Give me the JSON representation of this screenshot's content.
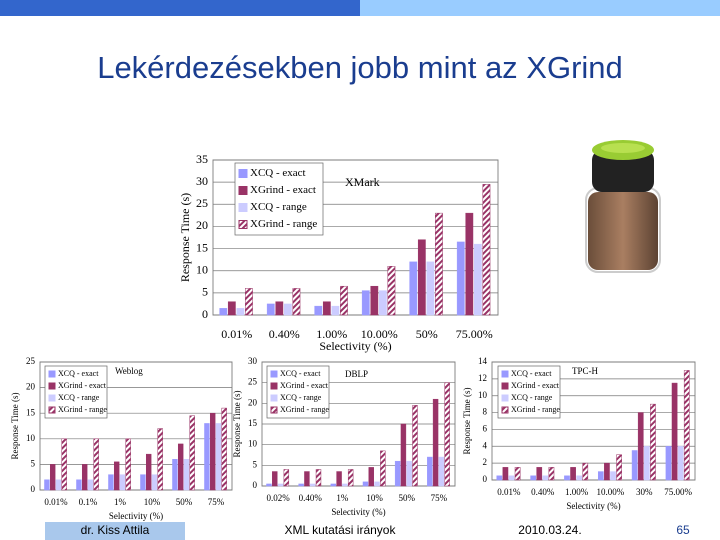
{
  "title": "Lekérdezésekben jobb mint az XGrind",
  "footer": {
    "author": "dr. Kiss Attila",
    "course": "XML kutatási irányok",
    "date": "2010.03.24.",
    "page": "65"
  },
  "chart_data": [
    {
      "type": "bar",
      "annotation": "XMark",
      "xlabel": "Selectivity (%)",
      "ylabel": "Response Time (s)",
      "legend": "upper left",
      "categories": [
        "0.01%",
        "0.40%",
        "1.00%",
        "10.00%",
        "50%",
        "75.00%"
      ],
      "ylim": [
        0,
        35
      ],
      "yticks": [
        0,
        5,
        10,
        15,
        20,
        25,
        30,
        35
      ],
      "series": [
        {
          "name": "XCQ - exact",
          "color": "#9999ff",
          "hatch": false,
          "values": [
            1.5,
            2.5,
            2,
            5.5,
            12,
            16.5
          ]
        },
        {
          "name": "XGrind - exact",
          "color": "#993366",
          "hatch": false,
          "values": [
            3,
            3,
            3,
            6.5,
            17,
            23
          ]
        },
        {
          "name": "XCQ - range",
          "color": "#ccccff",
          "hatch": false,
          "values": [
            1.5,
            2.5,
            2,
            5.5,
            12,
            16
          ]
        },
        {
          "name": "XGrind - range",
          "color": "#993366",
          "hatch": true,
          "values": [
            6,
            6,
            6.5,
            11,
            23,
            29.5
          ]
        }
      ]
    },
    {
      "type": "bar",
      "annotation": "Weblog",
      "xlabel": "Selectivity (%)",
      "ylabel": "Response Time (s)",
      "legend": "upper left",
      "categories": [
        "0.01%",
        "0.1%",
        "1%",
        "10%",
        "50%",
        "75%"
      ],
      "ylim": [
        0,
        25
      ],
      "yticks": [
        0,
        5,
        10,
        15,
        20,
        25
      ],
      "series": [
        {
          "name": "XCQ - exact",
          "color": "#9999ff",
          "hatch": false,
          "values": [
            2,
            2,
            3,
            3,
            6,
            13
          ]
        },
        {
          "name": "XGrind - exact",
          "color": "#993366",
          "hatch": false,
          "values": [
            5,
            5,
            5.5,
            7,
            9,
            15
          ]
        },
        {
          "name": "XCQ - range",
          "color": "#ccccff",
          "hatch": false,
          "values": [
            2,
            2,
            3,
            3,
            6,
            13
          ]
        },
        {
          "name": "XGrind - range",
          "color": "#993366",
          "hatch": true,
          "values": [
            10,
            10,
            10,
            12,
            14.5,
            16
          ]
        }
      ]
    },
    {
      "type": "bar",
      "annotation": "DBLP",
      "xlabel": "Selectivity (%)",
      "ylabel": "Response Time (s)",
      "legend": "upper left",
      "categories": [
        "0.02%",
        "0.40%",
        "1%",
        "10%",
        "50%",
        "75%"
      ],
      "ylim": [
        0,
        30
      ],
      "yticks": [
        0,
        5,
        10,
        15,
        20,
        25,
        30
      ],
      "series": [
        {
          "name": "XCQ - exact",
          "color": "#9999ff",
          "hatch": false,
          "values": [
            0.5,
            0.5,
            0.5,
            1,
            6,
            7
          ]
        },
        {
          "name": "XGrind - exact",
          "color": "#993366",
          "hatch": false,
          "values": [
            3.5,
            3.5,
            3.5,
            4.5,
            15,
            21
          ]
        },
        {
          "name": "XCQ - range",
          "color": "#ccccff",
          "hatch": false,
          "values": [
            0.5,
            0.5,
            0.5,
            1,
            6,
            7
          ]
        },
        {
          "name": "XGrind - range",
          "color": "#993366",
          "hatch": true,
          "values": [
            4,
            4,
            4,
            8.5,
            19.5,
            25
          ]
        }
      ]
    },
    {
      "type": "bar",
      "annotation": "TPC-H",
      "xlabel": "Selectivity (%)",
      "ylabel": "Response Time (s)",
      "legend": "upper left",
      "categories": [
        "0.01%",
        "0.40%",
        "1.00%",
        "10.00%",
        "30%",
        "75.00%"
      ],
      "ylim": [
        0,
        14
      ],
      "yticks": [
        0,
        2,
        4,
        6,
        8,
        10,
        12,
        14
      ],
      "series": [
        {
          "name": "XCQ - exact",
          "color": "#9999ff",
          "hatch": false,
          "values": [
            0.5,
            0.5,
            0.5,
            1,
            3.5,
            4
          ]
        },
        {
          "name": "XGrind - exact",
          "color": "#993366",
          "hatch": false,
          "values": [
            1.5,
            1.5,
            1.5,
            2,
            8,
            11.5
          ]
        },
        {
          "name": "XCQ - range",
          "color": "#ccccff",
          "hatch": false,
          "values": [
            0.5,
            0.5,
            0.5,
            1,
            4,
            4
          ]
        },
        {
          "name": "XGrind - range",
          "color": "#993366",
          "hatch": true,
          "values": [
            1.5,
            1.5,
            2,
            3,
            9,
            13
          ]
        }
      ]
    }
  ]
}
